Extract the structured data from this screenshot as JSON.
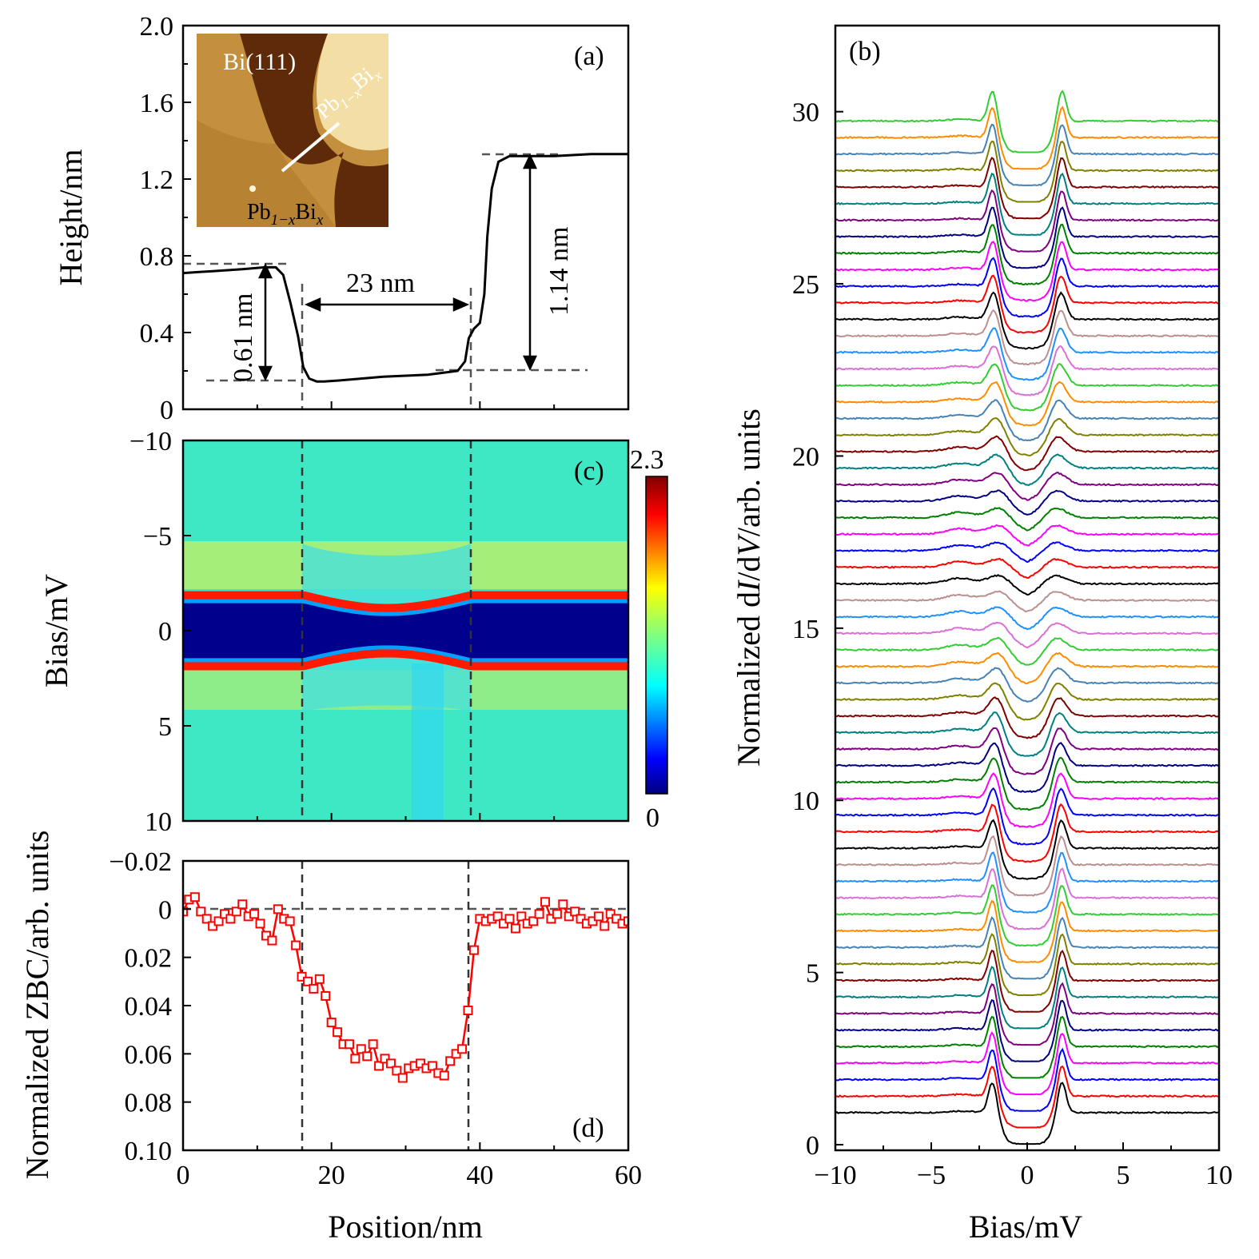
{
  "chart_data": [
    {
      "panel": "(a)",
      "type": "line",
      "ylabel": "Height/nm",
      "xlim": [
        0,
        60
      ],
      "ylim": [
        0,
        2.0
      ],
      "yticks": [
        "0",
        "0.4",
        "0.8",
        "1.2",
        "1.6",
        "2.0"
      ],
      "x": [
        0,
        4,
        8,
        11,
        12.5,
        13.5,
        14.5,
        15.5,
        16.2,
        17,
        18,
        19,
        21,
        24,
        27,
        30,
        33,
        35,
        37,
        38,
        38.5,
        39.2,
        40,
        40.6,
        41,
        41.6,
        42.5,
        44,
        47,
        50,
        55,
        60
      ],
      "y": [
        0.71,
        0.72,
        0.73,
        0.74,
        0.74,
        0.7,
        0.55,
        0.38,
        0.22,
        0.16,
        0.145,
        0.145,
        0.15,
        0.16,
        0.17,
        0.175,
        0.18,
        0.19,
        0.2,
        0.25,
        0.37,
        0.42,
        0.45,
        0.6,
        0.9,
        1.15,
        1.29,
        1.32,
        1.32,
        1.32,
        1.33,
        1.33
      ],
      "annotations": {
        "step_left": "0.61 nm",
        "width": "23 nm",
        "step_right": "1.14 nm"
      },
      "inset": {
        "label_top": "Bi(111)",
        "label_right": "Pb",
        "label_right_sub": "1−x",
        "label_right_tail": "Bi",
        "label_right_tail_sub": "x",
        "label_bottom": "Pb",
        "label_bottom_sub": "1−x",
        "label_bottom_tail": "Bi",
        "label_bottom_tail_sub": "x"
      }
    },
    {
      "panel": "(b)",
      "type": "line",
      "xlabel": "Bias/mV",
      "ylabel_parts": [
        "Normalized d",
        "I",
        "/d",
        "V",
        "/arb. units"
      ],
      "xlim": [
        -10,
        10
      ],
      "ylim": [
        0,
        32.5
      ],
      "xticks": [
        "−10",
        "−5",
        "0",
        "5",
        "10"
      ],
      "yticks": [
        "0",
        "5",
        "10",
        "15",
        "20",
        "25",
        "30"
      ],
      "n_spectra": 61,
      "offset_per_spectrum": 0.48,
      "coherence_peak_bias_mV": 1.8,
      "peak_height_range": [
        0.95,
        0.35
      ],
      "background_level": 0.93,
      "zero_bias_dip_center_traces": 0.55,
      "series_colors": [
        "#000000",
        "#ff0000",
        "#0000ff",
        "#ff00ff",
        "#008000",
        "#000080",
        "#800080",
        "#008080",
        "#800000",
        "#808000",
        "#4682b4",
        "#ff8c00",
        "#32cd32",
        "#da70d6",
        "#1e90ff",
        "#bc8f8f"
      ]
    },
    {
      "panel": "(c)",
      "type": "heatmap",
      "ylabel": "Bias/mV",
      "xlim": [
        0,
        60
      ],
      "ylim": [
        -10,
        10
      ],
      "yticks": [
        "−10",
        "−5",
        "0",
        "5",
        "10"
      ],
      "colorbar_max": "2.3",
      "colorbar_min": "0",
      "gap_mV": 1.6,
      "boundary_positions": [
        16.2,
        38.8
      ]
    },
    {
      "panel": "(d)",
      "type": "line",
      "xlabel": "Position/nm",
      "ylabel": "Normalized ZBC/arb. units",
      "xlim": [
        0,
        60
      ],
      "ylim": [
        -0.02,
        0.1
      ],
      "xticks": [
        "0",
        "20",
        "40",
        "60"
      ],
      "yticks": [
        "−0.02",
        "0",
        "0.02",
        "0.04",
        "0.06",
        "0.08",
        "0.10"
      ],
      "x": [
        0,
        0.8,
        1.6,
        2.4,
        3.2,
        4,
        4.8,
        5.6,
        6.4,
        7.2,
        8,
        8.8,
        9.6,
        10.4,
        11.2,
        12,
        12.8,
        13.6,
        14.4,
        15.2,
        16,
        16.8,
        17.6,
        18.4,
        19.2,
        20,
        20.8,
        21.6,
        22.4,
        23.2,
        24,
        24.8,
        25.6,
        26.4,
        27.2,
        28,
        28.8,
        29.6,
        30.4,
        31.2,
        32,
        32.8,
        33.6,
        34.4,
        35.2,
        36,
        36.8,
        37.6,
        38.4,
        39.2,
        40,
        40.8,
        41.6,
        42.4,
        43.2,
        44,
        44.8,
        45.6,
        46.4,
        47.2,
        48,
        48.8,
        49.6,
        50.4,
        51.2,
        52,
        52.8,
        53.6,
        54.4,
        55.2,
        56,
        56.8,
        57.6,
        58.4,
        59.2,
        60
      ],
      "y": [
        0.001,
        -0.004,
        -0.005,
        0.001,
        0.004,
        0.007,
        0.005,
        0.002,
        0.004,
        0.001,
        -0.002,
        0.003,
        0.002,
        0.006,
        0.011,
        0.013,
        0.0,
        0.004,
        0.005,
        0.015,
        0.028,
        0.03,
        0.033,
        0.029,
        0.036,
        0.047,
        0.051,
        0.056,
        0.056,
        0.062,
        0.058,
        0.061,
        0.056,
        0.065,
        0.062,
        0.064,
        0.067,
        0.07,
        0.066,
        0.065,
        0.064,
        0.066,
        0.065,
        0.068,
        0.069,
        0.063,
        0.06,
        0.058,
        0.042,
        0.017,
        0.004,
        0.005,
        0.004,
        0.003,
        0.006,
        0.004,
        0.008,
        0.003,
        0.006,
        0.005,
        0.002,
        -0.003,
        0.004,
        0.002,
        -0.002,
        0.003,
        0.001,
        0.004,
        0.006,
        0.005,
        0.003,
        0.007,
        0.002,
        0.004,
        0.006,
        0.005
      ],
      "reference_line_y": 0,
      "boundary_positions": [
        16.2,
        38.8
      ]
    }
  ],
  "color": {
    "zbc_line": "#ff0000",
    "boundary": "#444444",
    "profile_line": "#000000"
  }
}
